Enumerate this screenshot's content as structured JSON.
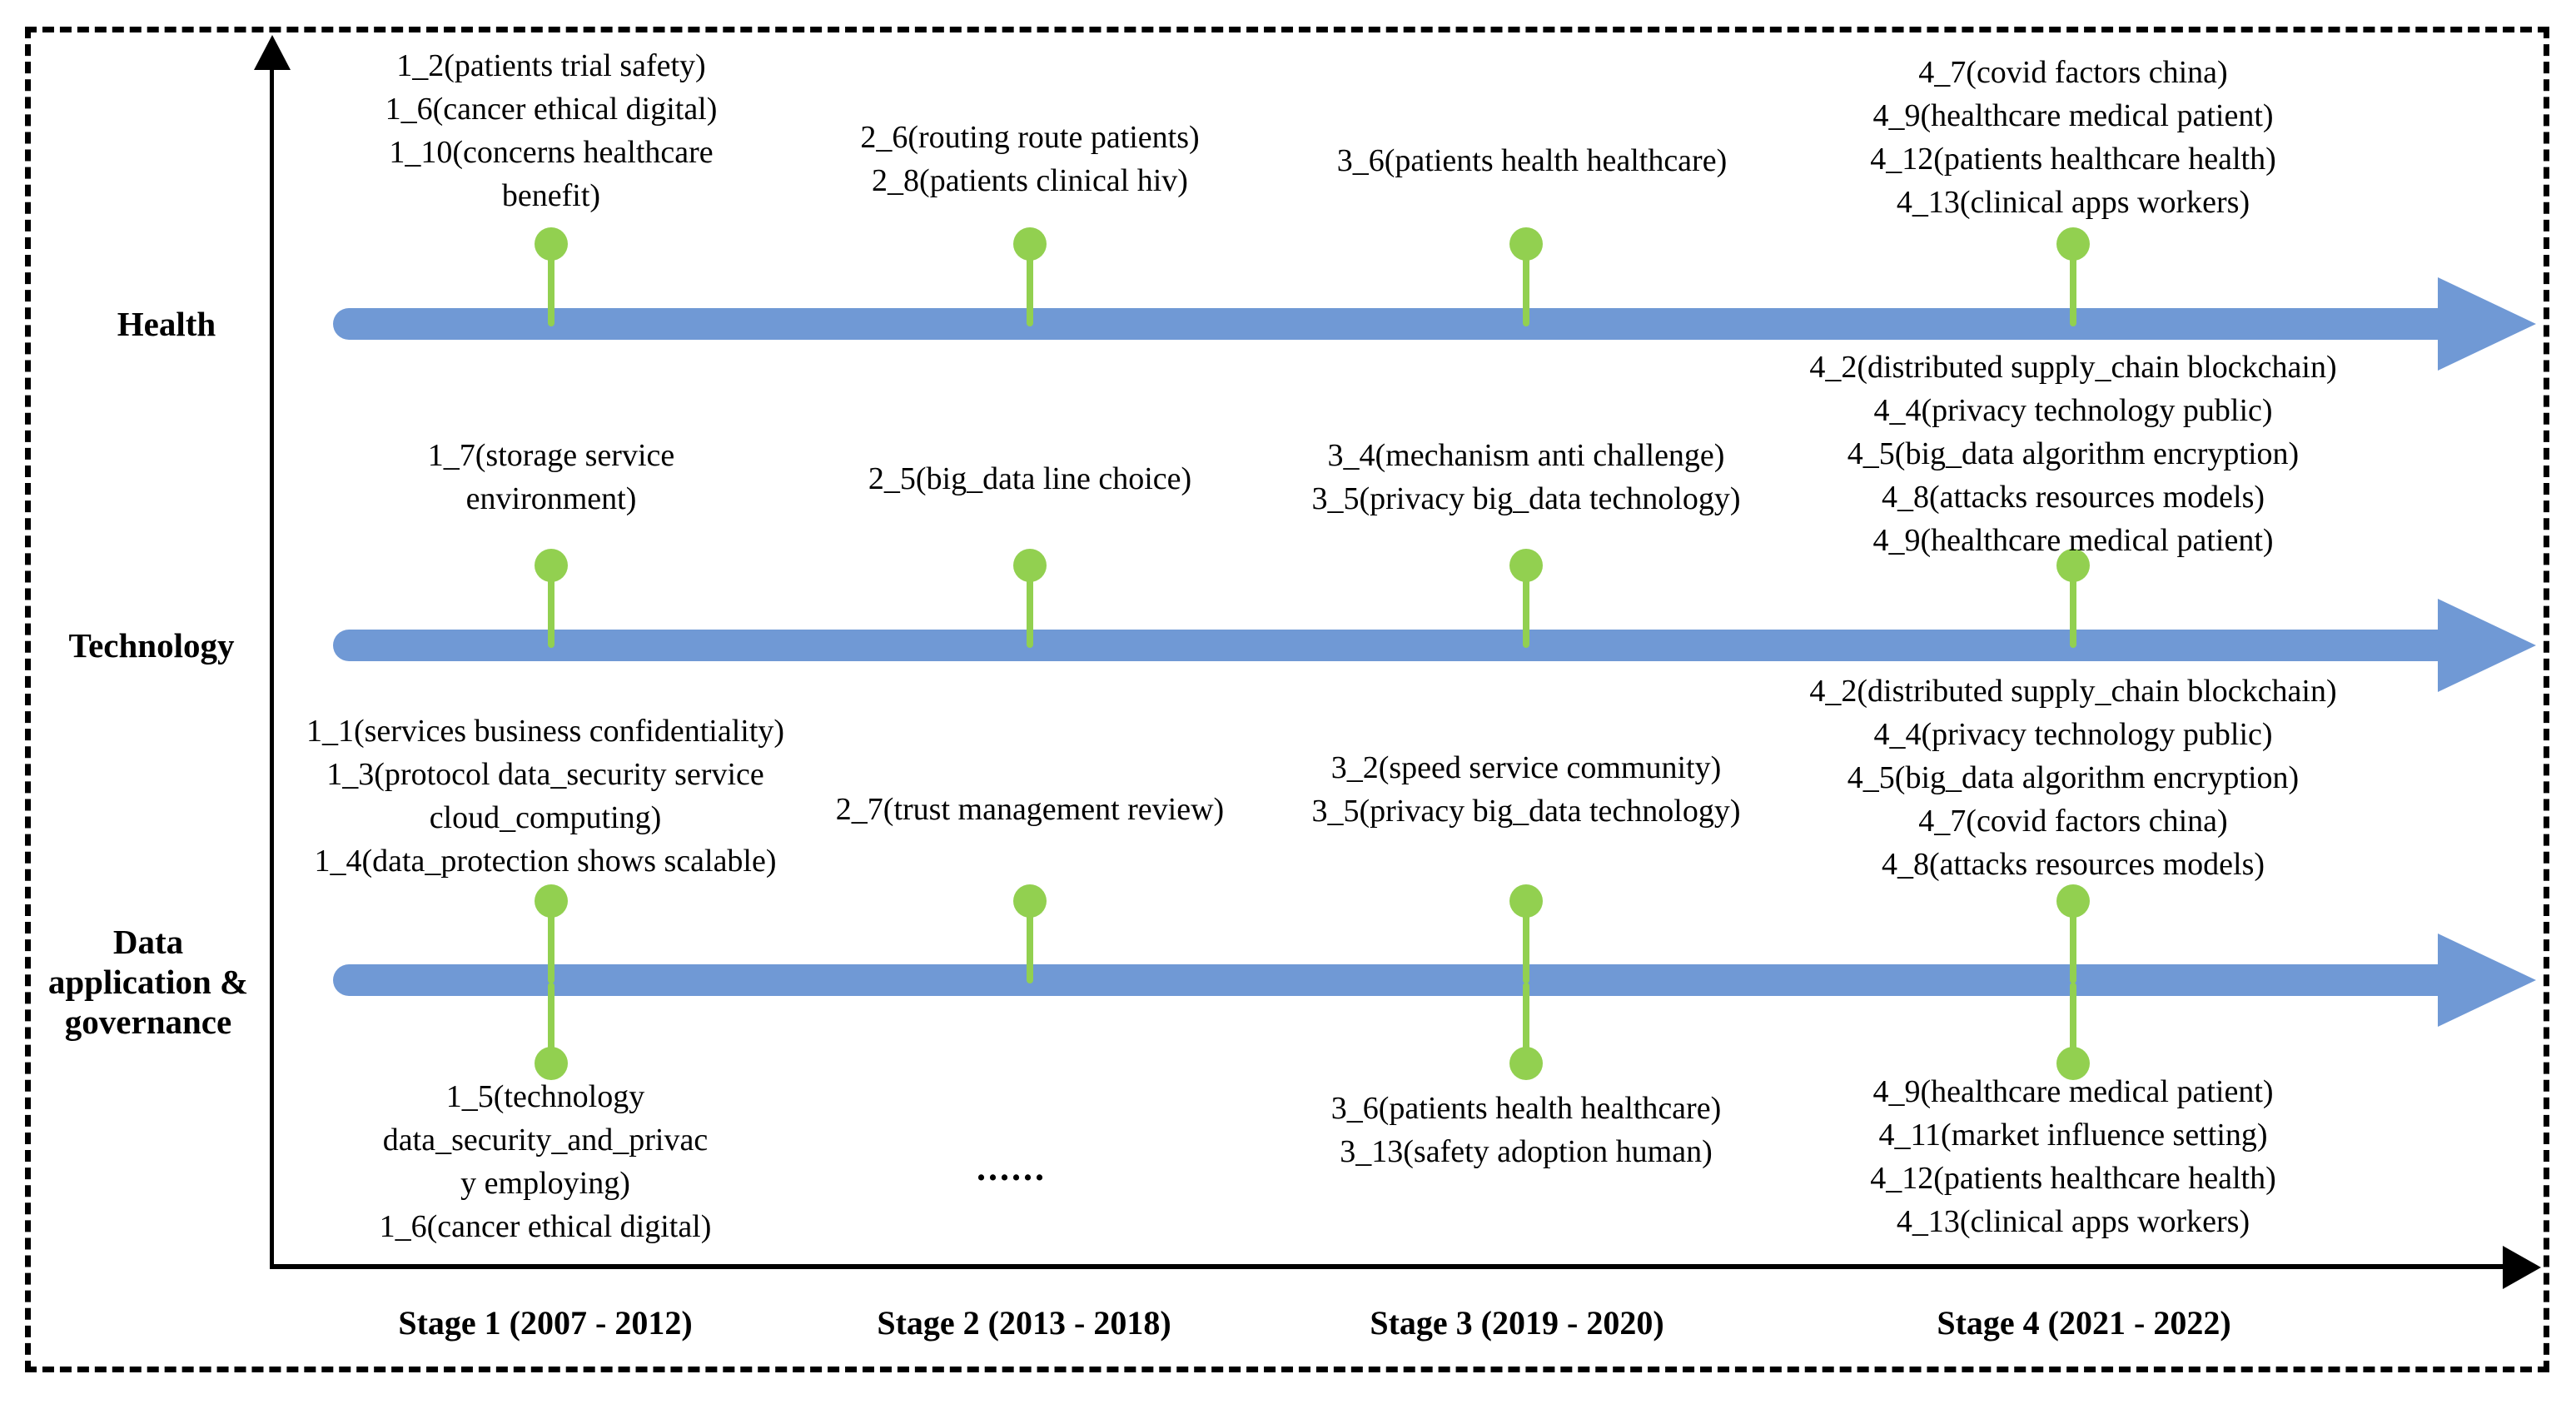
{
  "colors": {
    "arrow-blue": "#7099D5",
    "pin-green": "#92D050",
    "ink": "#000000",
    "paper": "#FFFFFF"
  },
  "rows": {
    "health": {
      "label": "Health"
    },
    "technology": {
      "label": "Technology"
    },
    "data_governance": {
      "label_lines": [
        "Data",
        "application &",
        "governance"
      ]
    }
  },
  "stages": {
    "s1": {
      "label": "Stage 1 (2007 - 2012)"
    },
    "s2": {
      "label": "Stage 2 (2013 - 2018)"
    },
    "s3": {
      "label": "Stage 3 (2019 - 2020)"
    },
    "s4": {
      "label": "Stage 4 (2021 - 2022)"
    }
  },
  "blocks": {
    "health_s1": {
      "lines": [
        "1_2(patients trial safety)",
        "1_6(cancer ethical digital)",
        "1_10(concerns healthcare",
        "benefit)"
      ]
    },
    "health_s2": {
      "lines": [
        "2_6(routing route patients)",
        "2_8(patients clinical hiv)"
      ]
    },
    "health_s3": {
      "lines": [
        "3_6(patients health healthcare)"
      ]
    },
    "health_s4": {
      "lines": [
        "4_7(covid factors china)",
        "4_9(healthcare medical patient)",
        "4_12(patients healthcare health)",
        "4_13(clinical apps workers)"
      ]
    },
    "tech_s1": {
      "lines": [
        "1_7(storage service",
        "environment)"
      ]
    },
    "tech_s2": {
      "lines": [
        "2_5(big_data line choice)"
      ]
    },
    "tech_s3": {
      "lines": [
        "3_4(mechanism anti challenge)",
        "3_5(privacy big_data technology)"
      ]
    },
    "tech_s4": {
      "lines": [
        "4_2(distributed supply_chain blockchain)",
        "4_4(privacy technology public)",
        "4_5(big_data algorithm encryption)",
        "4_8(attacks resources models)",
        "4_9(healthcare medical patient)"
      ]
    },
    "data_s1_above": {
      "lines": [
        "1_1(services business confidentiality)",
        "1_3(protocol data_security service",
        "cloud_computing)",
        "1_4(data_protection shows scalable)"
      ]
    },
    "data_s2_above": {
      "lines": [
        "2_7(trust management review)"
      ]
    },
    "data_s3_above": {
      "lines": [
        "3_2(speed service community)",
        "3_5(privacy big_data technology)"
      ]
    },
    "data_s4_above": {
      "lines": [
        "4_2(distributed supply_chain blockchain)",
        "4_4(privacy technology public)",
        "4_5(big_data algorithm encryption)",
        "4_7(covid factors china)",
        "4_8(attacks resources models)"
      ]
    },
    "data_s1_below": {
      "lines": [
        "1_5(technology",
        "data_security_and_privac",
        "y employing)",
        "1_6(cancer ethical digital)"
      ]
    },
    "data_s2_below": {
      "lines": [
        "......"
      ]
    },
    "data_s3_below": {
      "lines": [
        "3_6(patients health healthcare)",
        "3_13(safety adoption human)"
      ]
    },
    "data_s4_below": {
      "lines": [
        "4_9(healthcare medical patient)",
        "4_11(market influence setting)",
        "4_12(patients healthcare health)",
        "4_13(clinical apps workers)"
      ]
    }
  }
}
